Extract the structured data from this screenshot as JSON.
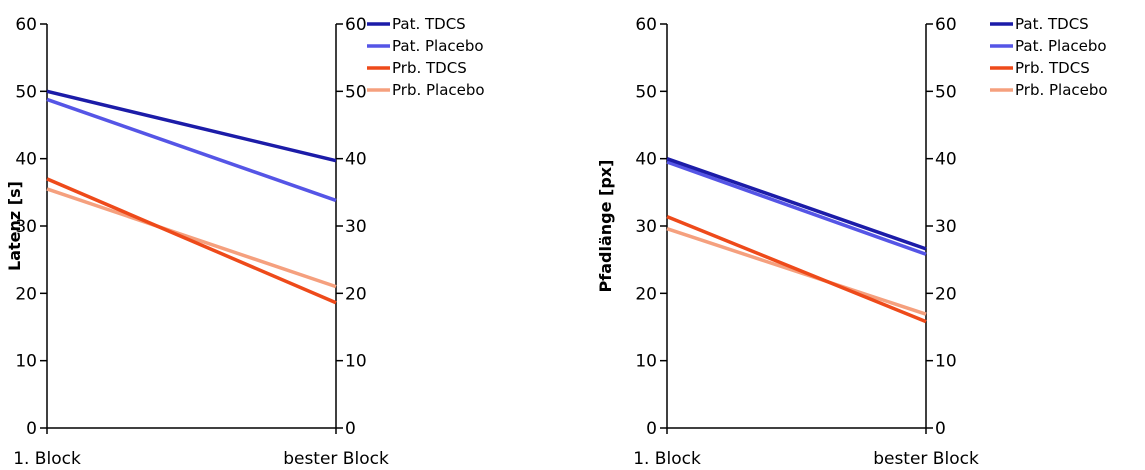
{
  "chart_data": [
    {
      "type": "line",
      "categories": [
        "1. Block",
        "bester Block"
      ],
      "ylabel": "Latenz [s]",
      "ylim": [
        0,
        60
      ],
      "yticks": [
        0,
        10,
        20,
        30,
        40,
        50,
        60
      ],
      "grid": false,
      "legend": "right",
      "series": [
        {
          "name": "Pat. TDCS",
          "color": "#1c1ca8",
          "values": [
            50.0,
            39.7
          ]
        },
        {
          "name": "Pat. Placebo",
          "color": "#5555e6",
          "values": [
            48.8,
            33.8
          ]
        },
        {
          "name": "Prb. TDCS",
          "color": "#ee4a1a",
          "values": [
            37.0,
            18.6
          ]
        },
        {
          "name": "Prb. Placebo",
          "color": "#f5a07e",
          "values": [
            35.5,
            21.0
          ]
        }
      ]
    },
    {
      "type": "line",
      "categories": [
        "1. Block",
        "bester Block"
      ],
      "ylabel": "Pfadlänge [px]",
      "ylim": [
        0,
        60
      ],
      "yticks": [
        0,
        10,
        20,
        30,
        40,
        50,
        60
      ],
      "grid": false,
      "legend": "right",
      "series": [
        {
          "name": "Pat. TDCS",
          "color": "#1c1ca8",
          "values": [
            40.0,
            26.6
          ]
        },
        {
          "name": "Pat. Placebo",
          "color": "#5555e6",
          "values": [
            39.5,
            25.8
          ]
        },
        {
          "name": "Prb. TDCS",
          "color": "#ee4a1a",
          "values": [
            31.4,
            15.8
          ]
        },
        {
          "name": "Prb. Placebo",
          "color": "#f5a07e",
          "values": [
            29.6,
            16.9
          ]
        }
      ]
    }
  ]
}
